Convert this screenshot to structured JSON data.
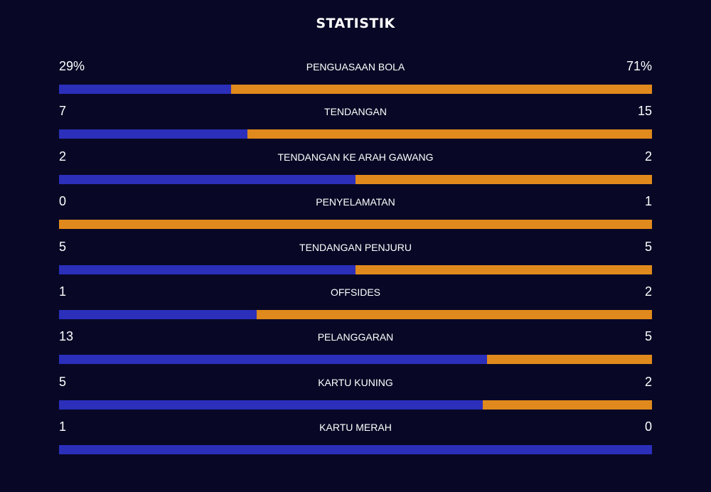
{
  "title": "STATISTIK",
  "colors": {
    "background": "#080826",
    "home": "#2b2fba",
    "away": "#e0891c"
  },
  "stats": [
    {
      "label": "PENGUASAAN BOLA",
      "home": "29%",
      "away": "71%",
      "home_value": 29,
      "away_value": 71
    },
    {
      "label": "TENDANGAN",
      "home": "7",
      "away": "15",
      "home_value": 7,
      "away_value": 15
    },
    {
      "label": "TENDANGAN KE ARAH GAWANG",
      "home": "2",
      "away": "2",
      "home_value": 2,
      "away_value": 2
    },
    {
      "label": "PENYELAMATAN",
      "home": "0",
      "away": "1",
      "home_value": 0,
      "away_value": 1
    },
    {
      "label": "TENDANGAN PENJURU",
      "home": "5",
      "away": "5",
      "home_value": 5,
      "away_value": 5
    },
    {
      "label": "OFFSIDES",
      "home": "1",
      "away": "2",
      "home_value": 1,
      "away_value": 2
    },
    {
      "label": "PELANGGARAN",
      "home": "13",
      "away": "5",
      "home_value": 13,
      "away_value": 5
    },
    {
      "label": "KARTU KUNING",
      "home": "5",
      "away": "2",
      "home_value": 5,
      "away_value": 2
    },
    {
      "label": "KARTU MERAH",
      "home": "1",
      "away": "0",
      "home_value": 1,
      "away_value": 0
    }
  ]
}
